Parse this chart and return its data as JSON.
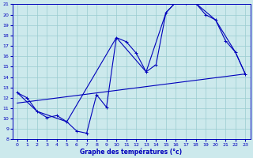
{
  "xlabel": "Graphe des températures (°c)",
  "xlim": [
    -0.5,
    23.5
  ],
  "ylim": [
    8,
    21
  ],
  "yticks": [
    8,
    9,
    10,
    11,
    12,
    13,
    14,
    15,
    16,
    17,
    18,
    19,
    20,
    21
  ],
  "xticks": [
    0,
    1,
    2,
    3,
    4,
    5,
    6,
    7,
    8,
    9,
    10,
    11,
    12,
    13,
    14,
    15,
    16,
    17,
    18,
    19,
    20,
    21,
    22,
    23
  ],
  "bg_color": "#cce9ec",
  "line_color": "#0000bb",
  "grid_color": "#99ccd0",
  "curve_main_x": [
    0,
    1,
    2,
    3,
    4,
    5,
    6,
    7,
    8,
    9,
    10,
    11,
    12,
    13,
    14,
    15,
    16,
    17,
    18,
    19,
    20,
    21,
    22,
    23
  ],
  "curve_main_y": [
    12.5,
    12.0,
    10.7,
    10.1,
    10.3,
    9.7,
    8.8,
    8.6,
    12.3,
    11.1,
    17.8,
    17.4,
    16.3,
    14.5,
    15.2,
    20.2,
    21.2,
    21.1,
    21.1,
    20.0,
    19.5,
    17.5,
    16.4,
    14.3
  ],
  "curve_trend1_x": [
    0,
    2,
    5,
    10,
    13,
    15,
    16,
    17,
    18,
    20,
    22,
    23
  ],
  "curve_trend1_y": [
    12.5,
    10.7,
    9.7,
    17.8,
    14.5,
    20.2,
    21.2,
    21.1,
    21.1,
    19.5,
    16.4,
    14.3
  ],
  "curve_trend2_x": [
    0,
    23
  ],
  "curve_trend2_y": [
    11.5,
    14.3
  ]
}
